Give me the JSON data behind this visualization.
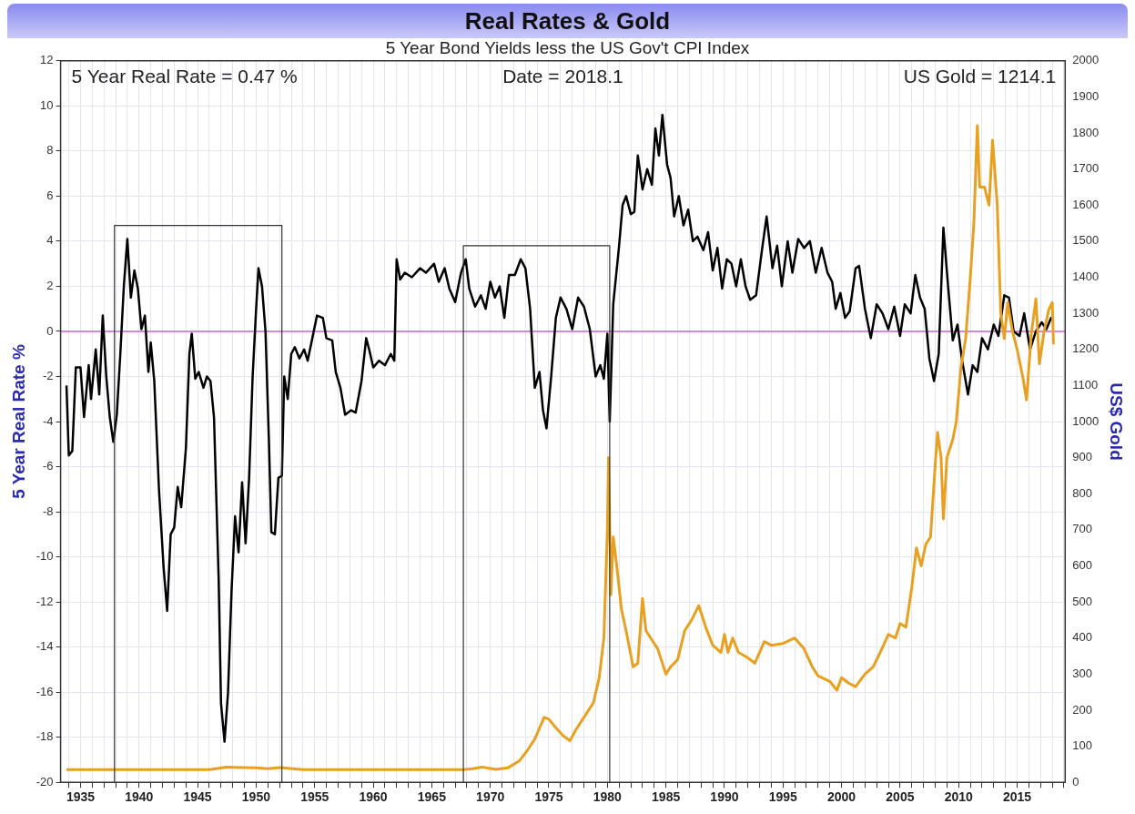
{
  "chart_data": {
    "type": "line",
    "title": "Real Rates & Gold",
    "subtitle": "5 Year Bond Yields less the US Gov't CPI Index",
    "ylabel": "5 Year Real Rate %",
    "y2label": "US$ Gold",
    "annotations": [
      "5 Year Real Rate = 0.47 %",
      "Date = 2018.1",
      "US Gold = 1214.1"
    ],
    "xlim": [
      1933.3,
      2019.1
    ],
    "xticks": [
      {
        "value": 1934,
        "label": null
      },
      1935,
      {
        "value": 1936,
        "label": null
      },
      {
        "value": 1937,
        "label": null
      },
      {
        "value": 1938,
        "label": null
      },
      {
        "value": 1939,
        "label": null
      },
      1940,
      {
        "value": 1941,
        "label": null
      },
      {
        "value": 1942,
        "label": null
      },
      {
        "value": 1943,
        "label": null
      },
      {
        "value": 1944,
        "label": null
      },
      1945,
      {
        "value": 1946,
        "label": null
      },
      {
        "value": 1947,
        "label": null
      },
      {
        "value": 1948,
        "label": null
      },
      {
        "value": 1949,
        "label": null
      },
      1950,
      {
        "value": 1951,
        "label": null
      },
      {
        "value": 1952,
        "label": null
      },
      {
        "value": 1953,
        "label": null
      },
      {
        "value": 1954,
        "label": null
      },
      1955,
      {
        "value": 1956,
        "label": null
      },
      {
        "value": 1957,
        "label": null
      },
      {
        "value": 1958,
        "label": null
      },
      {
        "value": 1959,
        "label": null
      },
      1960,
      {
        "value": 1961,
        "label": null
      },
      {
        "value": 1962,
        "label": null
      },
      {
        "value": 1963,
        "label": null
      },
      {
        "value": 1964,
        "label": null
      },
      1965,
      {
        "value": 1966,
        "label": null
      },
      {
        "value": 1967,
        "label": null
      },
      {
        "value": 1968,
        "label": null
      },
      {
        "value": 1969,
        "label": null
      },
      1970,
      {
        "value": 1971,
        "label": null
      },
      {
        "value": 1972,
        "label": null
      },
      {
        "value": 1973,
        "label": null
      },
      {
        "value": 1974,
        "label": null
      },
      1975,
      {
        "value": 1976,
        "label": null
      },
      {
        "value": 1977,
        "label": null
      },
      {
        "value": 1978,
        "label": null
      },
      {
        "value": 1979,
        "label": null
      },
      1980,
      {
        "value": 1981,
        "label": null
      },
      {
        "value": 1982,
        "label": null
      },
      {
        "value": 1983,
        "label": null
      },
      {
        "value": 1984,
        "label": null
      },
      1985,
      {
        "value": 1986,
        "label": null
      },
      {
        "value": 1987,
        "label": null
      },
      {
        "value": 1988,
        "label": null
      },
      {
        "value": 1989,
        "label": null
      },
      1990,
      {
        "value": 1991,
        "label": null
      },
      {
        "value": 1992,
        "label": null
      },
      {
        "value": 1993,
        "label": null
      },
      {
        "value": 1994,
        "label": null
      },
      1995,
      {
        "value": 1996,
        "label": null
      },
      {
        "value": 1997,
        "label": null
      },
      {
        "value": 1998,
        "label": null
      },
      {
        "value": 1999,
        "label": null
      },
      2000,
      {
        "value": 2001,
        "label": null
      },
      {
        "value": 2002,
        "label": null
      },
      {
        "value": 2003,
        "label": null
      },
      {
        "value": 2004,
        "label": null
      },
      2005,
      {
        "value": 2006,
        "label": null
      },
      {
        "value": 2007,
        "label": null
      },
      {
        "value": 2008,
        "label": null
      },
      {
        "value": 2009,
        "label": null
      },
      2010,
      {
        "value": 2011,
        "label": null
      },
      {
        "value": 2012,
        "label": null
      },
      {
        "value": 2013,
        "label": null
      },
      {
        "value": 2014,
        "label": null
      },
      2015,
      {
        "value": 2016,
        "label": null
      },
      {
        "value": 2017,
        "label": null
      },
      {
        "value": 2018,
        "label": null
      },
      {
        "value": 2019,
        "label": null
      }
    ],
    "ylim": [
      -20,
      12
    ],
    "yticks": [
      -20,
      -18,
      -16,
      -14,
      -12,
      -10,
      -8,
      -6,
      -4,
      -2,
      0,
      2,
      4,
      6,
      8,
      10,
      12
    ],
    "y2lim": [
      0,
      2000
    ],
    "y2ticks": [
      0,
      100,
      200,
      300,
      400,
      500,
      600,
      700,
      800,
      900,
      1000,
      1100,
      1200,
      1300,
      1400,
      1500,
      1600,
      1700,
      1800,
      1900,
      2000
    ],
    "grid": true,
    "legend": false,
    "marker": "none",
    "line_style": "solid",
    "ref_lines": [
      {
        "axis": "y",
        "value": 0,
        "color": "#cc66cc"
      }
    ],
    "series": [
      {
        "color": "#333333",
        "x": [
          1937.9,
          1937.9,
          1952.2,
          1952.2
        ],
        "values": [
          -20,
          4.7,
          4.7,
          -20
        ]
      },
      {
        "color": "#333333",
        "x": [
          1967.7,
          1967.7,
          1980.2,
          1980.2
        ],
        "values": [
          -20,
          3.8,
          3.8,
          -20
        ]
      },
      {
        "axis": "y2",
        "color": "#e8a020",
        "x": [
          1933.8,
          1946,
          1947.5,
          1950,
          1951,
          1952,
          1954,
          1967.7,
          1968.5,
          1969.3,
          1970.5,
          1971.5,
          1972.5,
          1973.2,
          1973.8,
          1974.2,
          1974.6,
          1975,
          1975.5,
          1976.2,
          1976.8,
          1977.3,
          1978,
          1978.8,
          1979.3,
          1979.7,
          1980,
          1980.1,
          1980.3,
          1980.5,
          1980.8,
          1981.2,
          1981.6,
          1982.2,
          1982.6,
          1983,
          1983.3,
          1983.7,
          1984.3,
          1985,
          1985.4,
          1986,
          1986.6,
          1987.2,
          1987.8,
          1988.4,
          1989,
          1989.7,
          1990,
          1990.3,
          1990.7,
          1991.2,
          1992,
          1992.6,
          1993.4,
          1994,
          1995,
          1996,
          1996.8,
          1997.5,
          1998,
          1999,
          1999.6,
          2000,
          2000.6,
          2001.2,
          2002,
          2002.7,
          2003.3,
          2004,
          2004.6,
          2005,
          2005.5,
          2006,
          2006.4,
          2006.8,
          2007.2,
          2007.6,
          2008,
          2008.2,
          2008.5,
          2008.7,
          2009,
          2009.5,
          2009.8,
          2010.2,
          2010.6,
          2011,
          2011.3,
          2011.6,
          2011.8,
          2012.2,
          2012.6,
          2012.9,
          2013.3,
          2013.6,
          2013.9,
          2014.2,
          2014.6,
          2015,
          2015.5,
          2015.8,
          2016.2,
          2016.6,
          2016.9,
          2017.3,
          2017.7,
          2018,
          2018.1
        ],
        "values": [
          35,
          35,
          42,
          40,
          38,
          41,
          35,
          35,
          38,
          42,
          36,
          40,
          60,
          90,
          120,
          150,
          180,
          175,
          155,
          130,
          115,
          145,
          180,
          220,
          290,
          400,
          700,
          900,
          520,
          680,
          600,
          480,
          420,
          320,
          330,
          510,
          420,
          400,
          370,
          300,
          320,
          340,
          420,
          450,
          490,
          430,
          380,
          360,
          410,
          360,
          400,
          360,
          345,
          330,
          390,
          380,
          385,
          400,
          370,
          320,
          295,
          280,
          255,
          290,
          275,
          265,
          300,
          320,
          360,
          410,
          400,
          440,
          430,
          540,
          650,
          600,
          660,
          680,
          880,
          970,
          900,
          730,
          900,
          950,
          1000,
          1150,
          1230,
          1400,
          1550,
          1820,
          1650,
          1650,
          1600,
          1780,
          1600,
          1300,
          1230,
          1330,
          1250,
          1200,
          1120,
          1060,
          1240,
          1340,
          1160,
          1250,
          1310,
          1330,
          1214
        ]
      },
      {
        "color": "#000000",
        "x": [
          1933.8,
          1934,
          1934.3,
          1934.6,
          1935,
          1935.3,
          1935.7,
          1935.9,
          1936.3,
          1936.6,
          1936.9,
          1937.2,
          1937.5,
          1937.8,
          1938.1,
          1938.4,
          1938.7,
          1939,
          1939.3,
          1939.6,
          1939.9,
          1940.2,
          1940.5,
          1940.8,
          1941,
          1941.3,
          1941.7,
          1942.1,
          1942.4,
          1942.7,
          1943,
          1943.3,
          1943.6,
          1944,
          1944.3,
          1944.5,
          1944.8,
          1945.1,
          1945.5,
          1945.8,
          1946.1,
          1946.4,
          1946.8,
          1947,
          1947.3,
          1947.6,
          1947.9,
          1948.2,
          1948.5,
          1948.8,
          1949.1,
          1949.4,
          1949.7,
          1950,
          1950.2,
          1950.5,
          1950.8,
          1951.1,
          1951.3,
          1951.6,
          1951.9,
          1952.2,
          1952.4,
          1952.7,
          1953,
          1953.3,
          1953.7,
          1954.1,
          1954.4,
          1954.8,
          1955.2,
          1955.7,
          1956,
          1956.5,
          1956.8,
          1957.2,
          1957.6,
          1958.1,
          1958.5,
          1959,
          1959.4,
          1959.7,
          1960,
          1960.5,
          1961,
          1961.5,
          1961.8,
          1962,
          1962.3,
          1962.7,
          1963.3,
          1964,
          1964.5,
          1965.2,
          1965.6,
          1966.1,
          1966.5,
          1967,
          1967.5,
          1967.9,
          1968.2,
          1968.7,
          1969.2,
          1969.6,
          1970,
          1970.4,
          1970.8,
          1971.2,
          1971.6,
          1972.1,
          1972.6,
          1973,
          1973.4,
          1973.8,
          1974.2,
          1974.5,
          1974.8,
          1975.2,
          1975.6,
          1976,
          1976.5,
          1977,
          1977.5,
          1978,
          1978.5,
          1979,
          1979.4,
          1979.7,
          1980,
          1980.2,
          1980.5,
          1981,
          1981.3,
          1981.6,
          1982,
          1982.3,
          1982.6,
          1983,
          1983.4,
          1983.8,
          1984.1,
          1984.4,
          1984.7,
          1985.1,
          1985.4,
          1985.7,
          1986.1,
          1986.5,
          1986.9,
          1987.3,
          1987.7,
          1988.2,
          1988.6,
          1989,
          1989.4,
          1989.8,
          1990.2,
          1990.6,
          1991,
          1991.4,
          1991.8,
          1992.2,
          1992.7,
          1993.2,
          1993.6,
          1994.1,
          1994.5,
          1994.9,
          1995.4,
          1995.8,
          1996.3,
          1996.8,
          1997.3,
          1997.8,
          1998.3,
          1998.8,
          1999.2,
          1999.5,
          1999.9,
          2000.3,
          2000.7,
          2001.2,
          2001.5,
          2002,
          2002.5,
          2003,
          2003.5,
          2004,
          2004.5,
          2005,
          2005.4,
          2005.9,
          2006.3,
          2006.7,
          2007.1,
          2007.5,
          2007.9,
          2008.3,
          2008.7,
          2009.1,
          2009.5,
          2009.9,
          2010.3,
          2010.8,
          2011.2,
          2011.6,
          2012,
          2012.5,
          2013,
          2013.4,
          2013.9,
          2014.3,
          2014.7,
          2015.2,
          2015.6,
          2016.1,
          2016.6,
          2017.1,
          2017.5,
          2017.9,
          2018.1
        ],
        "values": [
          -2.4,
          -5.5,
          -5.3,
          -1.6,
          -1.6,
          -3.8,
          -1.5,
          -3,
          -0.8,
          -2.8,
          0.7,
          -2,
          -3.8,
          -4.9,
          -3.7,
          -1,
          2,
          4.1,
          1.5,
          2.7,
          1.9,
          0.1,
          0.7,
          -1.8,
          -0.5,
          -2.2,
          -7,
          -10.5,
          -12.4,
          -9,
          -8.7,
          -6.9,
          -7.8,
          -5.2,
          -1,
          -0.1,
          -2.1,
          -1.8,
          -2.5,
          -2,
          -2.2,
          -3.8,
          -11,
          -16.5,
          -18.2,
          -16,
          -11.5,
          -8.2,
          -9.8,
          -6.7,
          -9.4,
          -6.5,
          -2,
          1,
          2.8,
          2,
          0,
          -5,
          -8.9,
          -9,
          -6.5,
          -6.4,
          -2,
          -3,
          -1,
          -0.7,
          -1.2,
          -0.8,
          -1.3,
          -0.3,
          0.7,
          0.6,
          -0.3,
          -0.4,
          -1.8,
          -2.5,
          -3.7,
          -3.5,
          -3.6,
          -2.2,
          -0.3,
          -0.9,
          -1.6,
          -1.3,
          -1.5,
          -1,
          -1.3,
          3.2,
          2.3,
          2.6,
          2.4,
          2.8,
          2.6,
          3,
          2.2,
          2.8,
          1.9,
          1.3,
          2.6,
          3.2,
          1.9,
          1.1,
          1.6,
          1,
          2.2,
          1.5,
          2,
          0.6,
          2.5,
          2.5,
          3.2,
          2.8,
          1,
          -2.5,
          -1.8,
          -3.5,
          -4.3,
          -2,
          0.6,
          1.5,
          1,
          0.1,
          1.5,
          1.1,
          0.1,
          -2,
          -1.5,
          -2.1,
          -0.1,
          -4,
          1.2,
          3.8,
          5.6,
          6,
          5.2,
          5.3,
          7.8,
          6.3,
          7.2,
          6.5,
          9,
          7.8,
          9.6,
          7.4,
          6.8,
          5.1,
          6,
          4.7,
          5.4,
          4,
          4.2,
          3.6,
          4.4,
          2.7,
          3.7,
          1.9,
          3.2,
          3,
          2,
          3.2,
          2,
          1.4,
          1.6,
          3.6,
          5.1,
          2.8,
          3.8,
          2,
          4,
          2.6,
          4.1,
          3.7,
          4,
          2.6,
          3.7,
          2.6,
          2.2,
          1,
          1.7,
          0.6,
          0.9,
          2.8,
          2.9,
          1,
          -0.3,
          1.2,
          0.8,
          0.1,
          1.1,
          -0.2,
          1.2,
          0.8,
          2.5,
          1.5,
          1,
          -1.2,
          -2.2,
          -1,
          4.6,
          2,
          -0.4,
          0.3,
          -1.3,
          -2.8,
          -1.5,
          -1.8,
          -0.3,
          -0.8,
          0.3,
          -0.2,
          1.6,
          1.5,
          0,
          -0.2,
          0.8,
          -0.8,
          0,
          0.4,
          0.1,
          0.6,
          0.47
        ]
      }
    ]
  }
}
